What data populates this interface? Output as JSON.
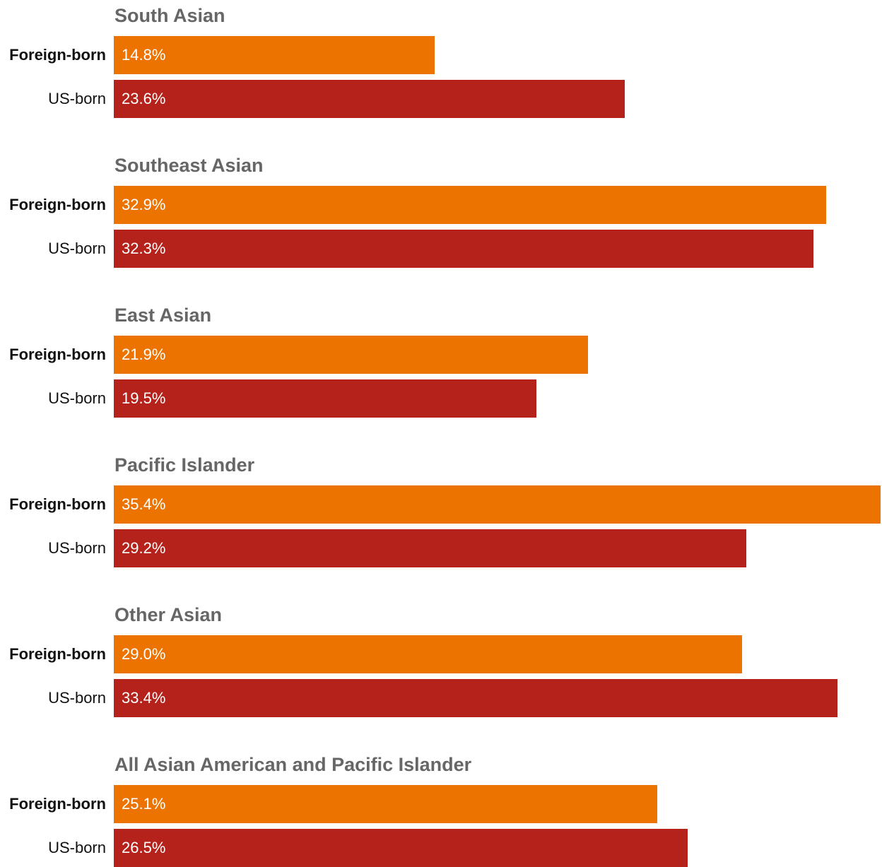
{
  "chart_data": {
    "type": "bar",
    "orientation": "horizontal",
    "categories": [
      "Foreign-born",
      "US-born"
    ],
    "groups": [
      {
        "title": "South Asian",
        "values": [
          14.8,
          23.6
        ],
        "labels": [
          "14.8%",
          "23.6%"
        ]
      },
      {
        "title": "Southeast Asian",
        "values": [
          32.9,
          32.3
        ],
        "labels": [
          "32.9%",
          "32.3%"
        ]
      },
      {
        "title": "East Asian",
        "values": [
          21.9,
          19.5
        ],
        "labels": [
          "21.9%",
          "19.5%"
        ]
      },
      {
        "title": "Pacific Islander",
        "values": [
          35.4,
          29.2
        ],
        "labels": [
          "35.4%",
          "29.2%"
        ]
      },
      {
        "title": "Other Asian",
        "values": [
          29.0,
          33.4
        ],
        "labels": [
          "29.0%",
          "33.4%"
        ]
      },
      {
        "title": "All Asian American and Pacific Islander",
        "values": [
          25.1,
          26.5
        ],
        "labels": [
          "25.1%",
          "26.5%"
        ]
      }
    ],
    "xlim": [
      0,
      35.4
    ],
    "grid": false,
    "legend": "none",
    "colors": {
      "Foreign-born": "#ec7300",
      "US-born": "#b5221b"
    }
  }
}
